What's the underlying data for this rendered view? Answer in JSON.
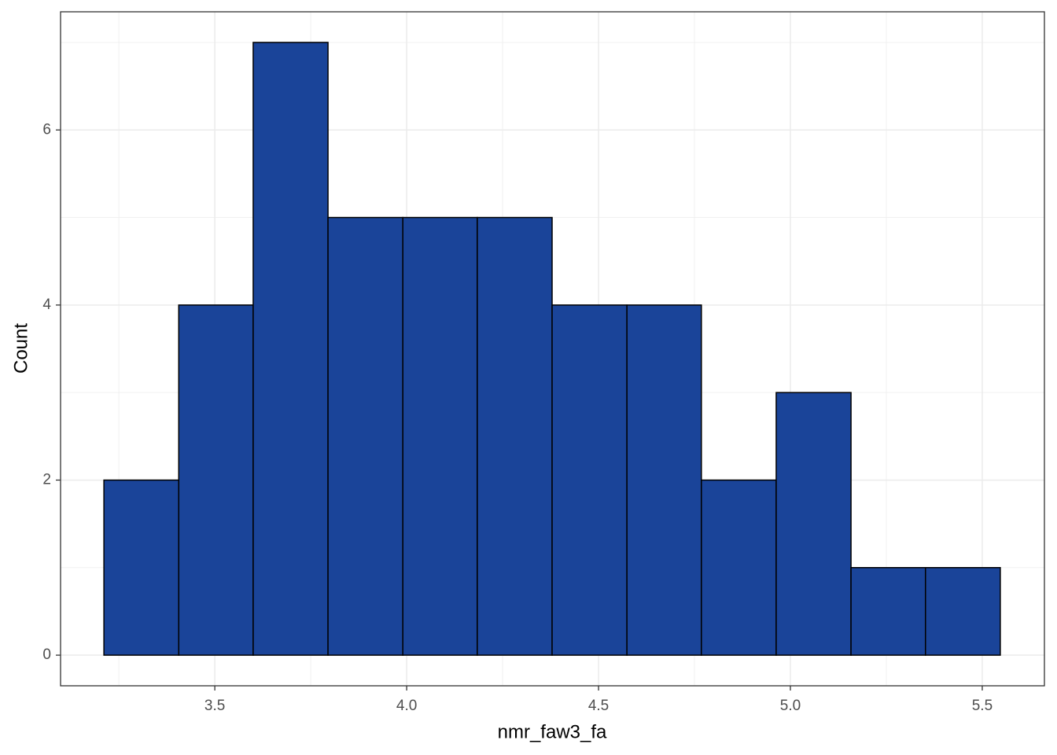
{
  "chart_data": {
    "type": "histogram",
    "x_label": "nmr_faw3_fa",
    "y_label": "Count",
    "bins": [
      3.211,
      3.406,
      3.6,
      3.795,
      3.99,
      4.184,
      4.379,
      4.574,
      4.768,
      4.963,
      5.158,
      5.352,
      5.547
    ],
    "values": [
      2,
      4,
      7,
      5,
      5,
      5,
      4,
      4,
      2,
      3,
      1,
      1
    ],
    "color": "#1a4499",
    "edge_color": "#000000",
    "xlim": [
      3.098,
      5.662
    ],
    "xticks": [
      3.5,
      {
        "value": 4,
        "label": "4.0"
      },
      4.5,
      {
        "value": 5,
        "label": "5.0"
      },
      5.5
    ],
    "ylim": [
      -0.35,
      7.35
    ],
    "yticks": [
      0,
      2,
      4,
      6
    ],
    "grid": true
  }
}
